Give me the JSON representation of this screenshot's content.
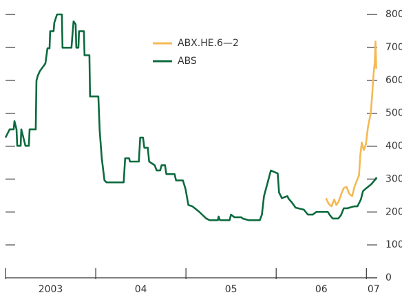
{
  "chart_data": {
    "type": "line",
    "xlim": [
      2003,
      2007.12
    ],
    "ylim": [
      0,
      800
    ],
    "yticks": [
      0,
      100,
      200,
      300,
      400,
      500,
      600,
      700,
      800
    ],
    "xticks": [
      {
        "value": 2003.5,
        "label": "2003"
      },
      {
        "value": 2004.5,
        "label": "04"
      },
      {
        "value": 2005.5,
        "label": "05"
      },
      {
        "value": 2006.5,
        "label": "06"
      },
      {
        "value": 2007.08,
        "label": "07"
      }
    ],
    "xminorticks": [
      2003,
      2004,
      2005,
      2006,
      2007
    ],
    "series": [
      {
        "name": "ABX.HE.6—2",
        "color": "#f5b953",
        "x": [
          2006.552,
          2006.582,
          2006.613,
          2006.643,
          2006.667,
          2006.69,
          2006.728,
          2006.75,
          2006.781,
          2006.811,
          2006.842,
          2006.872,
          2006.895,
          2006.918,
          2006.933,
          2006.949,
          2006.971,
          2006.994,
          2007.017,
          2007.032,
          2007.048,
          2007.063,
          2007.078,
          2007.093,
          2007.101,
          2007.109
        ],
        "values": [
          242,
          225,
          217,
          238,
          221,
          230,
          259,
          273,
          276,
          255,
          248,
          280,
          296,
          311,
          374,
          411,
          388,
          405,
          457,
          478,
          499,
          551,
          614,
          656,
          718,
          635
        ]
      },
      {
        "name": "ABS",
        "color": "#0b6a3e",
        "x": [
          2003.0,
          2003.046,
          2003.091,
          2003.099,
          2003.122,
          2003.13,
          2003.168,
          2003.175,
          2003.221,
          2003.259,
          2003.267,
          2003.335,
          2003.343,
          2003.358,
          2003.381,
          2003.442,
          2003.465,
          2003.488,
          2003.495,
          2003.533,
          2003.541,
          2003.571,
          2003.625,
          2003.632,
          2003.731,
          2003.754,
          2003.777,
          2003.785,
          2003.808,
          2003.815,
          2003.869,
          2003.876,
          2003.93,
          2003.937,
          2004.029,
          2004.044,
          2004.067,
          2004.097,
          2004.12,
          2004.31,
          2004.326,
          2004.371,
          2004.379,
          2004.478,
          2004.493,
          2004.524,
          2004.539,
          2004.577,
          2004.592,
          2004.653,
          2004.676,
          2004.714,
          2004.73,
          2004.768,
          2004.783,
          2004.874,
          2004.89,
          2004.966,
          2004.996,
          2005.027,
          2005.072,
          2005.149,
          2005.225,
          2005.263,
          2005.354,
          2005.362,
          2005.377,
          2005.484,
          2005.499,
          2005.537,
          2005.613,
          2005.629,
          2005.697,
          2005.819,
          2005.842,
          2005.865,
          2005.91,
          2005.941,
          2006.017,
          2006.032,
          2006.063,
          2006.124,
          2006.139,
          2006.177,
          2006.215,
          2006.307,
          2006.352,
          2006.406,
          2006.444,
          2006.573,
          2006.596,
          2006.627,
          2006.688,
          2006.718,
          2006.749,
          2006.787,
          2006.863,
          2006.901,
          2006.939,
          2006.962,
          2006.985,
          2007.053,
          2007.091,
          2007.114
        ],
        "values": [
          426,
          451,
          451,
          476,
          451,
          401,
          401,
          451,
          401,
          401,
          451,
          451,
          599,
          614,
          628,
          651,
          697,
          697,
          749,
          749,
          775,
          800,
          800,
          699,
          699,
          779,
          770,
          699,
          699,
          749,
          749,
          676,
          676,
          551,
          551,
          447,
          363,
          296,
          290,
          290,
          363,
          363,
          353,
          353,
          426,
          426,
          395,
          395,
          353,
          342,
          326,
          326,
          342,
          342,
          315,
          315,
          296,
          296,
          269,
          221,
          217,
          200,
          180,
          175,
          175,
          186,
          175,
          175,
          192,
          184,
          184,
          180,
          175,
          175,
          192,
          248,
          294,
          326,
          317,
          259,
          242,
          248,
          240,
          228,
          213,
          207,
          192,
          192,
          200,
          200,
          190,
          180,
          180,
          190,
          211,
          211,
          217,
          217,
          238,
          263,
          269,
          284,
          296,
          305
        ]
      }
    ],
    "legend": "upper-center"
  }
}
